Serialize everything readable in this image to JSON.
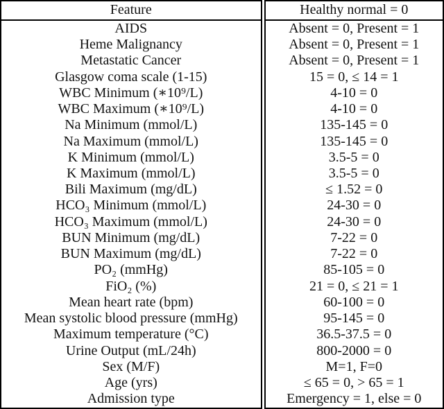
{
  "page": {
    "background": "#ffffff",
    "text_color": "#111111",
    "border_color": "#000000"
  },
  "table": {
    "header": {
      "feature": "Feature",
      "value": "Healthy normal = 0"
    },
    "rows": [
      {
        "feature": "AIDS",
        "value": "Absent = 0, Present = 1"
      },
      {
        "feature": "Heme Malignancy",
        "value": "Absent = 0, Present = 1"
      },
      {
        "feature": "Metastatic Cancer",
        "value": "Absent = 0, Present = 1"
      },
      {
        "feature": "Glasgow coma scale (1-15)",
        "value": "15 = 0, ≤ 14 = 1"
      },
      {
        "feature": "WBC Minimum (∗10⁹/L)",
        "value": "4-10 = 0"
      },
      {
        "feature": "WBC Maximum (∗10⁹/L)",
        "value": "4-10 = 0"
      },
      {
        "feature": "Na Minimum (mmol/L)",
        "value": "135-145 = 0"
      },
      {
        "feature": "Na Maximum (mmol/L)",
        "value": "135-145 = 0"
      },
      {
        "feature": "K Minimum (mmol/L)",
        "value": "3.5-5 = 0"
      },
      {
        "feature": "K Maximum (mmol/L)",
        "value": "3.5-5 = 0"
      },
      {
        "feature": "Bili Maximum (mg/dL)",
        "value": "≤ 1.52 = 0"
      },
      {
        "feature": "HCO₃ Minimum (mmol/L)",
        "value": "24-30 = 0"
      },
      {
        "feature": "HCO₃ Maximum (mmol/L)",
        "value": "24-30 = 0"
      },
      {
        "feature": "BUN Minimum (mg/dL)",
        "value": "7-22 = 0"
      },
      {
        "feature": "BUN Maximum (mg/dL)",
        "value": "7-22 = 0"
      },
      {
        "feature": "PO₂ (mmHg)",
        "value": "85-105 = 0"
      },
      {
        "feature": "FiO₂ (%)",
        "value": "21 = 0, ≤ 21 = 1"
      },
      {
        "feature": "Mean heart rate (bpm)",
        "value": "60-100 = 0"
      },
      {
        "feature": "Mean systolic blood pressure (mmHg)",
        "value": "95-145 = 0"
      },
      {
        "feature": "Maximum temperature (°C)",
        "value": "36.5-37.5 = 0"
      },
      {
        "feature": "Urine Output (mL/24h)",
        "value": "800-2000 = 0"
      },
      {
        "feature": "Sex (M/F)",
        "value": "M=1, F=0"
      },
      {
        "feature": "Age (yrs)",
        "value": "≤ 65 = 0, > 65 = 1"
      },
      {
        "feature": "Admission type",
        "value": "Emergency = 1, else = 0"
      }
    ]
  }
}
